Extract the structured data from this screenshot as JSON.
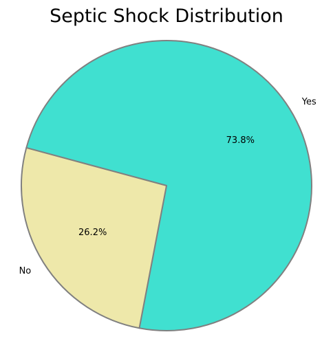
{
  "chart_data": {
    "type": "pie",
    "title": "Septic Shock Distribution",
    "labels": [
      "Yes",
      "No"
    ],
    "values": [
      73.8,
      26.2
    ],
    "pct_labels": [
      "73.8%",
      "26.2%"
    ],
    "colors": [
      "#40e0d0",
      "#eee8aa"
    ],
    "edgecolor": "#808080",
    "legend": "none"
  }
}
